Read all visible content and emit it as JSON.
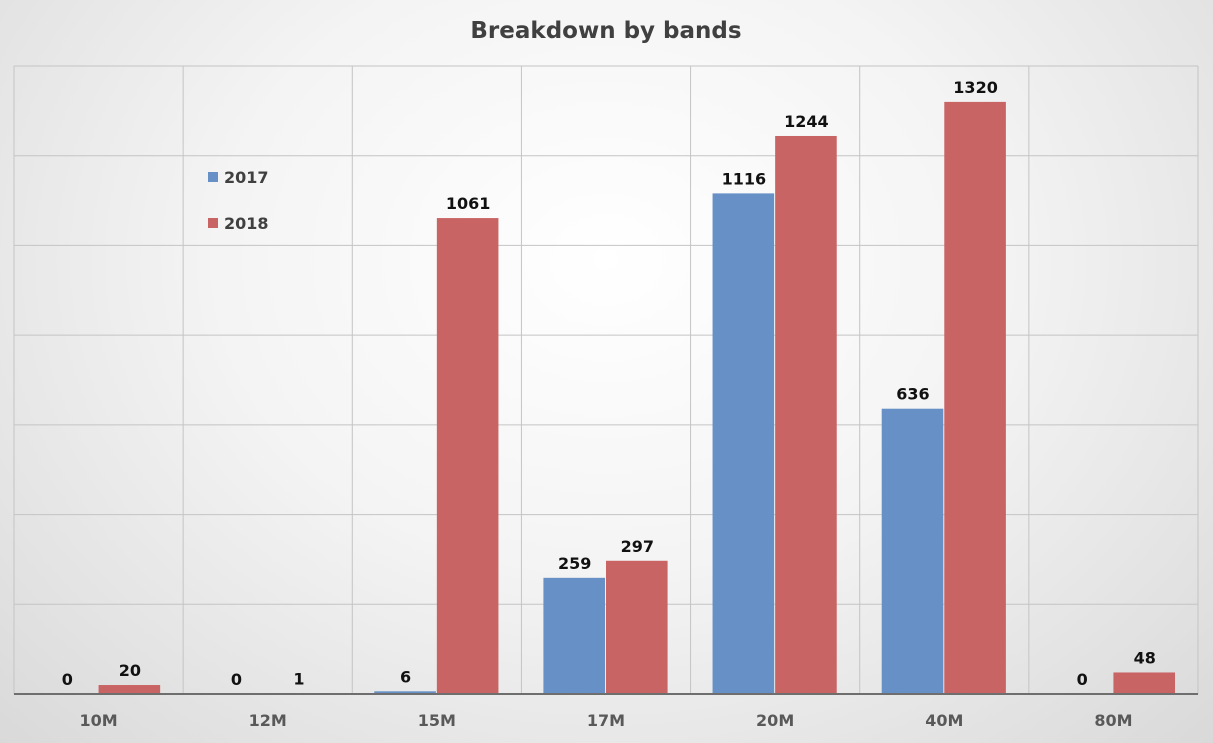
{
  "chart_data": {
    "type": "bar",
    "title": "Breakdown by bands",
    "xlabel": "",
    "ylabel": "",
    "categories": [
      "10M",
      "12M",
      "15M",
      "17M",
      "20M",
      "40M",
      "80M"
    ],
    "series": [
      {
        "name": "2017",
        "values": [
          0,
          0,
          6,
          259,
          1116,
          636,
          0
        ],
        "color": "#6690c6"
      },
      {
        "name": "2018",
        "values": [
          20,
          1,
          1061,
          297,
          1244,
          1320,
          48
        ],
        "color": "#c96464"
      }
    ],
    "ylim": [
      0,
      1400
    ],
    "y_tick_step": 200,
    "y_tick_labels_visible": false,
    "grid": true,
    "data_labels": true,
    "legend_position": "top-left"
  }
}
